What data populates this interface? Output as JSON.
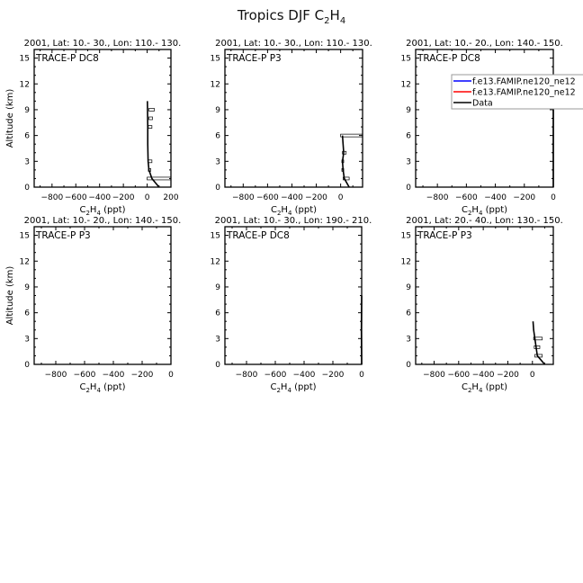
{
  "title": {
    "main": "Tropics DJF C",
    "sub1": "2",
    "mid": "H",
    "sub2": "4"
  },
  "chart_data": [
    {
      "type": "line",
      "subtitle": "2001, Lat: 10.- 30., Lon: 110.- 130.",
      "annotation": "TRACE-P DC8",
      "xlabel": "C2H4 (ppt)",
      "ylabel": "Altitude (km)",
      "xlim": [
        -950,
        200
      ],
      "ylim": [
        0,
        16
      ],
      "xticks": [
        -800,
        -600,
        -400,
        -200,
        0,
        200
      ],
      "yticks": [
        0,
        3,
        6,
        9,
        12,
        15
      ],
      "series": [
        {
          "color": "#000000",
          "points": [
            [
              100,
              0
            ],
            [
              70,
              0.5
            ],
            [
              40,
              1
            ],
            [
              15,
              2
            ],
            [
              8,
              3
            ],
            [
              5,
              5
            ],
            [
              5,
              7
            ],
            [
              3,
              9
            ],
            [
              2,
              10
            ]
          ]
        }
      ],
      "boxes": [
        [
          1,
          0,
          200
        ],
        [
          2,
          10,
          30
        ],
        [
          3,
          10,
          40
        ],
        [
          7,
          10,
          40
        ],
        [
          8,
          15,
          45
        ],
        [
          9,
          15,
          60
        ]
      ]
    },
    {
      "type": "line",
      "subtitle": "2001, Lat: 10.- 30., Lon: 110.- 130.",
      "annotation": "TRACE-P P3",
      "xlabel": "C2H4 (ppt)",
      "ylabel": "",
      "xlim": [
        -950,
        180
      ],
      "ylim": [
        0,
        16
      ],
      "xticks": [
        -800,
        -600,
        -400,
        -200,
        0
      ],
      "yticks": [
        0,
        3,
        6,
        9,
        12,
        15
      ],
      "series": [
        {
          "color": "#000000",
          "points": [
            [
              70,
              0
            ],
            [
              30,
              1
            ],
            [
              20,
              2
            ],
            [
              15,
              3
            ],
            [
              25,
              4
            ],
            [
              20,
              5
            ],
            [
              15,
              6
            ]
          ]
        }
      ],
      "boxes": [
        [
          1,
          20,
          70
        ],
        [
          2,
          10,
          25
        ],
        [
          3,
          10,
          25
        ],
        [
          4,
          15,
          45
        ],
        [
          6,
          0,
          180
        ]
      ]
    },
    {
      "type": "line",
      "subtitle": "2001, Lat: 10.- 20., Lon: 140.- 150.",
      "annotation": "TRACE-P DC8",
      "xlabel": "C2H4 (ppt)",
      "ylabel": "",
      "xlim": [
        -950,
        0
      ],
      "ylim": [
        0,
        16
      ],
      "xticks": [
        -800,
        -600,
        -400,
        -200,
        0
      ],
      "yticks": [
        0,
        3,
        6,
        9,
        12,
        15
      ],
      "series": [
        {
          "color": "#000000",
          "points": [
            [
              0,
              0
            ],
            [
              0,
              5
            ],
            [
              0,
              10.5
            ]
          ]
        }
      ],
      "boxes": [],
      "legend": {
        "position": "top-right",
        "entries": [
          {
            "label": "f.e13.FAMIP.ne120_ne12",
            "color": "#0000ff"
          },
          {
            "label": "f.e13.FAMIP.ne120_ne12",
            "color": "#ff0000"
          },
          {
            "label": "Data",
            "color": "#000000"
          }
        ]
      }
    },
    {
      "type": "line",
      "subtitle": "2001, Lat: 10.- 20., Lon: 140.- 150.",
      "annotation": "TRACE-P P3",
      "xlabel": "C2H4 (ppt)",
      "ylabel": "Altitude (km)",
      "xlim": [
        -950,
        0
      ],
      "ylim": [
        0,
        16
      ],
      "xticks": [
        -800,
        -600,
        -400,
        -200,
        0
      ],
      "yticks": [
        0,
        3,
        6,
        9,
        12,
        15
      ],
      "series": [],
      "boxes": []
    },
    {
      "type": "line",
      "subtitle": "2001, Lat: 10.- 30., Lon: 190.- 210.",
      "annotation": "TRACE-P DC8",
      "xlabel": "C2H4 (ppt)",
      "ylabel": "",
      "xlim": [
        -950,
        0
      ],
      "ylim": [
        0,
        16
      ],
      "xticks": [
        -800,
        -600,
        -400,
        -200,
        0
      ],
      "yticks": [
        0,
        3,
        6,
        9,
        12,
        15
      ],
      "series": [
        {
          "color": "#000000",
          "points": [
            [
              0,
              0
            ],
            [
              -2,
              4
            ],
            [
              0,
              8
            ]
          ]
        }
      ],
      "boxes": []
    },
    {
      "type": "line",
      "subtitle": "2001, Lat: 20.- 40., Lon: 130.- 150.",
      "annotation": "TRACE-P P3",
      "xlabel": "C2H4 (ppt)",
      "ylabel": "",
      "xlim": [
        -950,
        170
      ],
      "ylim": [
        0,
        16
      ],
      "xticks": [
        -800,
        -600,
        -400,
        -200,
        0
      ],
      "yticks": [
        0,
        3,
        6,
        9,
        12,
        15
      ],
      "series": [
        {
          "color": "#000000",
          "points": [
            [
              100,
              0
            ],
            [
              40,
              1
            ],
            [
              30,
              2
            ],
            [
              20,
              3
            ],
            [
              10,
              4
            ],
            [
              5,
              5
            ]
          ]
        }
      ],
      "boxes": [
        [
          1,
          20,
          80
        ],
        [
          2,
          15,
          60
        ],
        [
          3,
          10,
          80
        ]
      ]
    }
  ]
}
